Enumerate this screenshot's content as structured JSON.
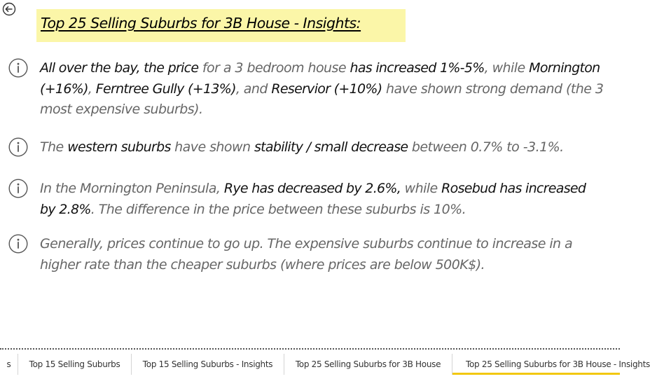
{
  "report": {
    "title": "Top 25 Selling Suburbs for 3B House - Insights:",
    "insights": [
      {
        "segments": [
          {
            "text": "All over the bay, the price",
            "highlight": true
          },
          {
            "text": " for a 3 bedroom house ",
            "highlight": false
          },
          {
            "text": "has increased 1%-5%",
            "highlight": true
          },
          {
            "text": ", while ",
            "highlight": false
          },
          {
            "text": "Mornington (+16%)",
            "highlight": true
          },
          {
            "text": ", ",
            "highlight": false
          },
          {
            "text": "Ferntree Gully (+13%)",
            "highlight": true
          },
          {
            "text": ", and ",
            "highlight": false
          },
          {
            "text": "Reservior (+10%)",
            "highlight": true
          },
          {
            "text": " have shown strong demand (the 3 most expensive suburbs).",
            "highlight": false
          }
        ]
      },
      {
        "segments": [
          {
            "text": "The ",
            "highlight": false
          },
          {
            "text": "western suburbs",
            "highlight": true
          },
          {
            "text": " have shown ",
            "highlight": false
          },
          {
            "text": "stability / small decrease",
            "highlight": true
          },
          {
            "text": " between 0.7% to -3.1%.",
            "highlight": false
          }
        ]
      },
      {
        "segments": [
          {
            "text": "In the Mornington Peninsula, ",
            "highlight": false
          },
          {
            "text": "Rye has decreased by 2.6%,",
            "highlight": true
          },
          {
            "text": " while ",
            "highlight": false
          },
          {
            "text": "Rosebud has increased by 2.8%",
            "highlight": true
          },
          {
            "text": ". The difference in the price between these suburbs is 10%.",
            "highlight": false
          }
        ]
      },
      {
        "segments": [
          {
            "text": "Generally, prices continue to go up. The expensive suburbs continue to increase in a higher rate than the cheaper suburbs (where prices are below 500K$).",
            "highlight": false
          }
        ]
      }
    ]
  },
  "tabs": [
    {
      "label": "s",
      "active": false
    },
    {
      "label": "Top 15 Selling Suburbs",
      "active": false
    },
    {
      "label": "Top 15 Selling Suburbs - Insights",
      "active": false
    },
    {
      "label": "Top 25 Selling Suburbs for 3B House",
      "active": false
    },
    {
      "label": "Top 25 Selling Suburbs for 3B House - Insights",
      "active": true
    }
  ],
  "icons": {
    "back": "back-arrow-icon",
    "info": "info-icon"
  },
  "colors": {
    "title_highlight": "#fbf6a8",
    "active_tab_underline": "#f2c811",
    "emphasis_text": "#111111",
    "body_text": "#666666"
  }
}
